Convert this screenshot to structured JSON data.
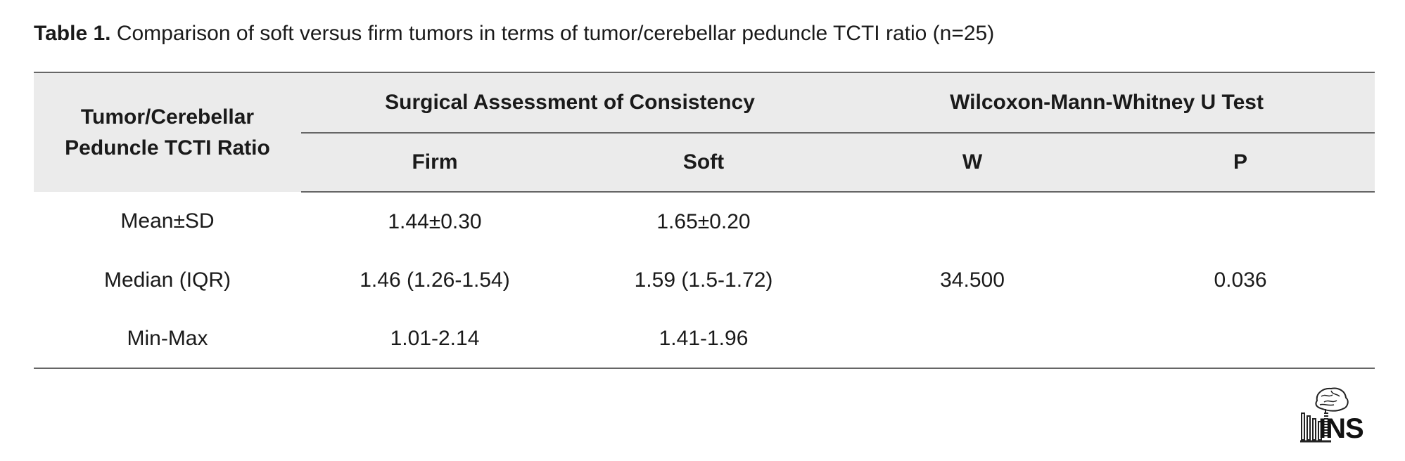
{
  "caption": {
    "label": "Table 1.",
    "text": " Comparison of soft versus firm tumors in terms of tumor/cerebellar peduncle TCTI ratio (n=25)"
  },
  "table": {
    "row_header": [
      "Tumor/Cerebellar",
      "Peduncle TCTI Ratio"
    ],
    "group_headers": [
      "Surgical Assessment of Consistency",
      "Wilcoxon-Mann-Whitney U Test"
    ],
    "sub_headers": [
      "Firm",
      "Soft",
      "W",
      "P"
    ],
    "rows": [
      {
        "label": "Mean±SD",
        "firm": "1.44±0.30",
        "soft": "1.65±0.20"
      },
      {
        "label": "Median (IQR)",
        "firm": "1.46 (1.26-1.54)",
        "soft": "1.59 (1.5-1.72)"
      },
      {
        "label": "Min-Max",
        "firm": "1.01-2.14",
        "soft": "1.41-1.96"
      }
    ],
    "test": {
      "w": "34.500",
      "p": "0.036"
    }
  },
  "logo": {
    "text": "INS",
    "icon": "brain-icon"
  }
}
